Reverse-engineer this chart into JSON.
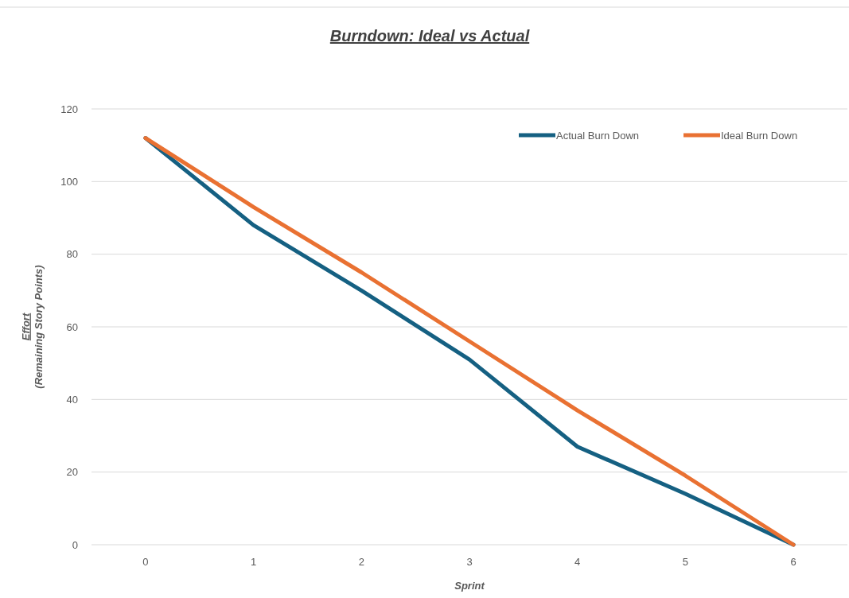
{
  "chart_data": {
    "type": "line",
    "title": "Burndown: Ideal vs Actual",
    "xlabel": "Sprint",
    "ylabel": "Effort\n(Remaining Story Points)",
    "categories": [
      "0",
      "1",
      "2",
      "3",
      "4",
      "5",
      "6"
    ],
    "series": [
      {
        "name": "Actual Burn Down",
        "color": "#156082",
        "values": [
          112,
          88,
          70,
          51,
          27,
          14,
          0
        ]
      },
      {
        "name": "Ideal Burn Down",
        "color": "#e97132",
        "values": [
          112,
          93,
          75,
          56,
          37,
          19,
          0
        ]
      }
    ],
    "ylim": [
      0,
      120
    ],
    "yticks": [
      0,
      20,
      40,
      60,
      80,
      100,
      120
    ],
    "grid": "y",
    "legend": "top right",
    "marker": "none",
    "line_style": "solid"
  }
}
